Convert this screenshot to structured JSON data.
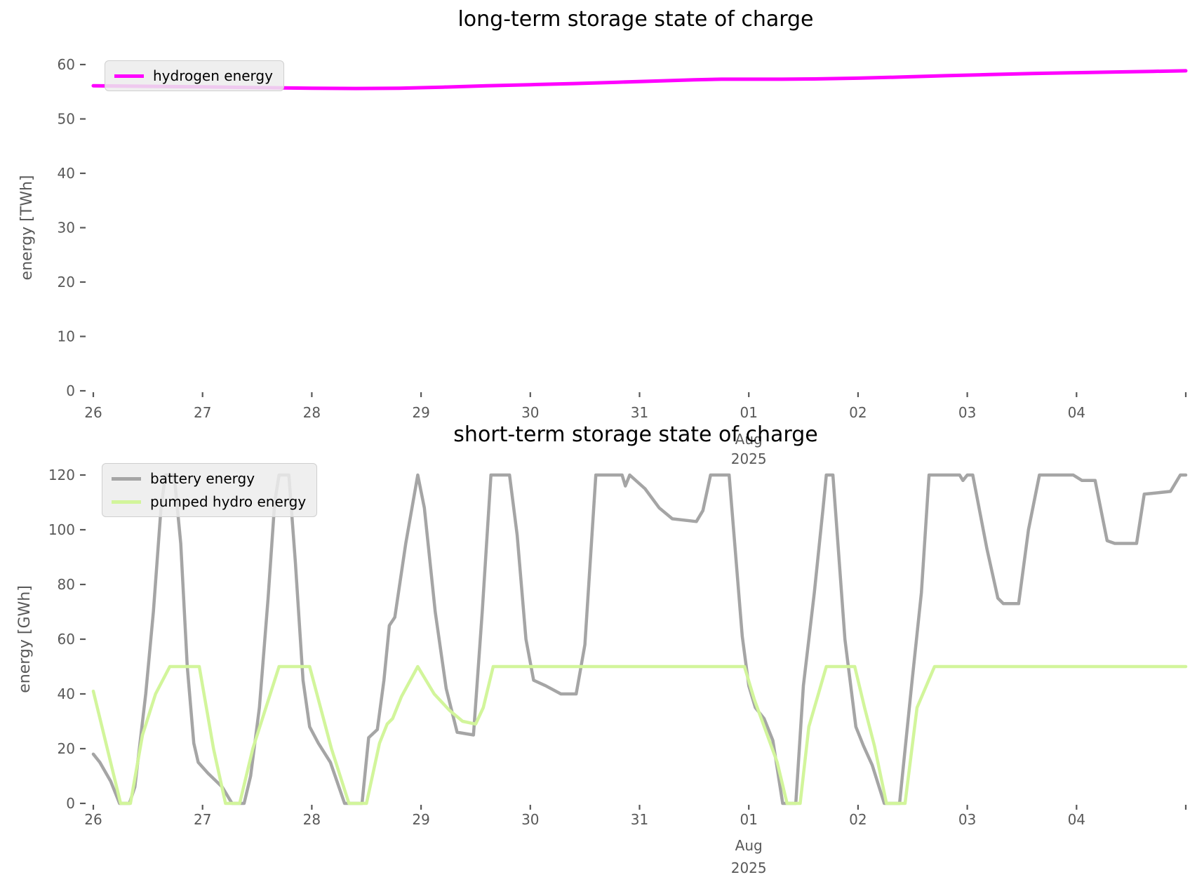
{
  "colors": {
    "background": "#ffffff",
    "tick_labels": "#595959",
    "title": "#000000",
    "hydrogen": "#ff00ff",
    "battery": "#a5a5a5",
    "pumped_hydro": "#d2f59b"
  },
  "chart_data": [
    {
      "type": "line",
      "title": "long-term storage state of charge",
      "ylabel": "energy [TWh]",
      "xlabel": "",
      "ylim": [
        0,
        60
      ],
      "yticks": [
        0,
        10,
        20,
        30,
        40,
        50,
        60
      ],
      "xlim_days": [
        0,
        10
      ],
      "xticklabels": [
        "26",
        "27",
        "28",
        "29",
        "30",
        "31",
        "01",
        "02",
        "03",
        "04"
      ],
      "x_offset_label": {
        "month": "Aug",
        "year": "2025"
      },
      "grid": false,
      "legend": {
        "location": "upper left",
        "entries": [
          {
            "label": "hydrogen energy",
            "color": "#ff00ff"
          }
        ]
      },
      "series": [
        {
          "name": "hydrogen energy",
          "color": "#ff00ff",
          "linewidth": 5,
          "points": [
            [
              0,
              56.1
            ],
            [
              0.5,
              56.0
            ],
            [
              1.0,
              55.9
            ],
            [
              1.5,
              55.75
            ],
            [
              2.0,
              55.65
            ],
            [
              2.4,
              55.6
            ],
            [
              2.8,
              55.65
            ],
            [
              3.2,
              55.85
            ],
            [
              3.6,
              56.1
            ],
            [
              4.0,
              56.3
            ],
            [
              4.4,
              56.5
            ],
            [
              4.8,
              56.75
            ],
            [
              5.2,
              57.0
            ],
            [
              5.5,
              57.2
            ],
            [
              5.75,
              57.3
            ],
            [
              6.0,
              57.3
            ],
            [
              6.3,
              57.3
            ],
            [
              6.6,
              57.35
            ],
            [
              7.0,
              57.5
            ],
            [
              7.4,
              57.7
            ],
            [
              7.8,
              57.95
            ],
            [
              8.2,
              58.15
            ],
            [
              8.6,
              58.35
            ],
            [
              9.0,
              58.5
            ],
            [
              9.4,
              58.65
            ],
            [
              9.7,
              58.75
            ],
            [
              10.0,
              58.85
            ]
          ]
        }
      ]
    },
    {
      "type": "line",
      "title": "short-term storage state of charge",
      "ylabel": "energy [GWh]",
      "xlabel": "",
      "ylim": [
        0,
        120
      ],
      "yticks": [
        0,
        20,
        40,
        60,
        80,
        100,
        120
      ],
      "xlim_days": [
        0,
        10
      ],
      "xticklabels": [
        "26",
        "27",
        "28",
        "29",
        "30",
        "31",
        "01",
        "02",
        "03",
        "04"
      ],
      "x_offset_label": {
        "month": "Aug",
        "year": "2025"
      },
      "grid": false,
      "legend": {
        "location": "upper left",
        "entries": [
          {
            "label": "battery energy",
            "color": "#a5a5a5"
          },
          {
            "label": "pumped hydro energy",
            "color": "#d2f59b"
          }
        ]
      },
      "series": [
        {
          "name": "battery energy",
          "color": "#a5a5a5",
          "linewidth": 4.5,
          "points": [
            [
              0,
              18
            ],
            [
              0.06,
              15
            ],
            [
              0.16,
              8
            ],
            [
              0.24,
              0
            ],
            [
              0.33,
              0
            ],
            [
              0.38,
              6
            ],
            [
              0.48,
              40
            ],
            [
              0.55,
              70
            ],
            [
              0.62,
              108
            ],
            [
              0.66,
              120
            ],
            [
              0.74,
              120
            ],
            [
              0.8,
              95
            ],
            [
              0.86,
              50
            ],
            [
              0.92,
              22
            ],
            [
              0.96,
              15
            ],
            [
              1.05,
              11
            ],
            [
              1.18,
              6
            ],
            [
              1.27,
              0
            ],
            [
              1.38,
              0
            ],
            [
              1.44,
              10
            ],
            [
              1.52,
              35
            ],
            [
              1.6,
              75
            ],
            [
              1.66,
              110
            ],
            [
              1.7,
              120
            ],
            [
              1.79,
              120
            ],
            [
              1.85,
              88
            ],
            [
              1.92,
              45
            ],
            [
              1.98,
              28
            ],
            [
              2.06,
              22
            ],
            [
              2.17,
              15
            ],
            [
              2.3,
              0
            ],
            [
              2.46,
              0
            ],
            [
              2.52,
              24
            ],
            [
              2.6,
              27
            ],
            [
              2.66,
              45
            ],
            [
              2.71,
              65
            ],
            [
              2.76,
              68
            ],
            [
              2.86,
              95
            ],
            [
              2.97,
              120
            ],
            [
              3.03,
              108
            ],
            [
              3.13,
              70
            ],
            [
              3.23,
              42
            ],
            [
              3.33,
              26
            ],
            [
              3.48,
              25
            ],
            [
              3.56,
              70
            ],
            [
              3.64,
              120
            ],
            [
              3.81,
              120
            ],
            [
              3.88,
              98
            ],
            [
              3.96,
              60
            ],
            [
              4.03,
              45
            ],
            [
              4.14,
              43
            ],
            [
              4.28,
              40
            ],
            [
              4.42,
              40
            ],
            [
              4.5,
              58
            ],
            [
              4.6,
              120
            ],
            [
              4.84,
              120
            ],
            [
              4.87,
              116
            ],
            [
              4.91,
              120
            ],
            [
              5.05,
              115
            ],
            [
              5.18,
              108
            ],
            [
              5.3,
              104
            ],
            [
              5.52,
              103
            ],
            [
              5.58,
              107
            ],
            [
              5.65,
              120
            ],
            [
              5.82,
              120
            ],
            [
              5.94,
              61
            ],
            [
              6.0,
              43
            ],
            [
              6.06,
              35
            ],
            [
              6.14,
              31
            ],
            [
              6.22,
              23
            ],
            [
              6.31,
              0
            ],
            [
              6.43,
              0
            ],
            [
              6.5,
              43
            ],
            [
              6.6,
              77
            ],
            [
              6.68,
              108
            ],
            [
              6.71,
              120
            ],
            [
              6.77,
              120
            ],
            [
              6.88,
              60
            ],
            [
              6.98,
              28
            ],
            [
              7.05,
              21
            ],
            [
              7.13,
              14
            ],
            [
              7.24,
              0
            ],
            [
              7.38,
              0
            ],
            [
              7.49,
              43
            ],
            [
              7.58,
              77
            ],
            [
              7.65,
              120
            ],
            [
              7.93,
              120
            ],
            [
              7.96,
              118
            ],
            [
              8.0,
              120
            ],
            [
              8.05,
              120
            ],
            [
              8.18,
              93
            ],
            [
              8.28,
              75
            ],
            [
              8.33,
              73
            ],
            [
              8.47,
              73
            ],
            [
              8.56,
              100
            ],
            [
              8.66,
              120
            ],
            [
              8.97,
              120
            ],
            [
              9.05,
              118
            ],
            [
              9.17,
              118
            ],
            [
              9.28,
              96
            ],
            [
              9.35,
              95
            ],
            [
              9.55,
              95
            ],
            [
              9.62,
              113
            ],
            [
              9.86,
              114
            ],
            [
              9.95,
              120
            ],
            [
              10.0,
              120
            ]
          ]
        },
        {
          "name": "pumped hydro energy",
          "color": "#d2f59b",
          "linewidth": 4.5,
          "points": [
            [
              0,
              41
            ],
            [
              0.25,
              0
            ],
            [
              0.34,
              0
            ],
            [
              0.45,
              25
            ],
            [
              0.57,
              40
            ],
            [
              0.7,
              50
            ],
            [
              0.97,
              50
            ],
            [
              1.1,
              20
            ],
            [
              1.21,
              0
            ],
            [
              1.34,
              0
            ],
            [
              1.46,
              20
            ],
            [
              1.7,
              50
            ],
            [
              1.98,
              50
            ],
            [
              2.18,
              20
            ],
            [
              2.34,
              0
            ],
            [
              2.5,
              0
            ],
            [
              2.62,
              22
            ],
            [
              2.69,
              29
            ],
            [
              2.74,
              31
            ],
            [
              2.82,
              39
            ],
            [
              2.97,
              50
            ],
            [
              3.12,
              40
            ],
            [
              3.26,
              34
            ],
            [
              3.38,
              30
            ],
            [
              3.5,
              29
            ],
            [
              3.57,
              35
            ],
            [
              3.66,
              50
            ],
            [
              5.96,
              50
            ],
            [
              6.05,
              38
            ],
            [
              6.16,
              26
            ],
            [
              6.26,
              15
            ],
            [
              6.35,
              0
            ],
            [
              6.47,
              0
            ],
            [
              6.55,
              28
            ],
            [
              6.71,
              50
            ],
            [
              6.97,
              50
            ],
            [
              7.06,
              35
            ],
            [
              7.15,
              21
            ],
            [
              7.26,
              0
            ],
            [
              7.43,
              0
            ],
            [
              7.54,
              35
            ],
            [
              7.7,
              50
            ],
            [
              10.0,
              50
            ]
          ]
        }
      ]
    }
  ]
}
